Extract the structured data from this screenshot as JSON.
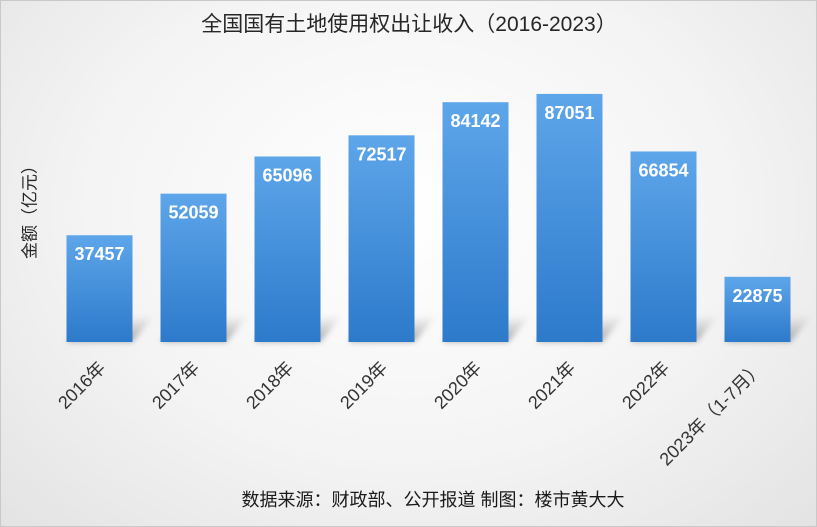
{
  "chart_data": {
    "type": "bar",
    "title": "全国国有土地使用权出让收入（2016-2023）",
    "xlabel": "",
    "ylabel": "金额（亿元）",
    "categories": [
      "2016年",
      "2017年",
      "2018年",
      "2019年",
      "2020年",
      "2021年",
      "2022年",
      "2023年（1-7月）"
    ],
    "values": [
      37457,
      52059,
      65096,
      72517,
      84142,
      87051,
      66854,
      22875
    ],
    "ylim": [
      0,
      100000
    ],
    "grid": false,
    "legend": "none",
    "data_labels": "inside-top",
    "colors": {
      "bar_top": "#5ea6ea",
      "bar_bottom": "#2d7acb",
      "label": "#ffffff"
    }
  },
  "footer": {
    "source": "数据来源：财政部、公开报道 制图：楼市黄大大"
  }
}
